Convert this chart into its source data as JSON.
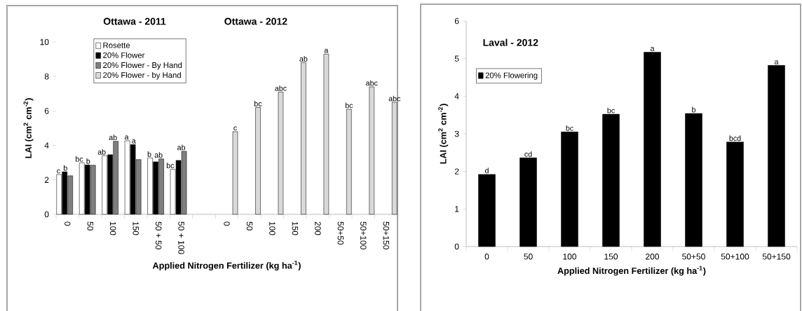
{
  "chart_data": [
    {
      "type": "bar",
      "title": "Ottawa - 2011",
      "annotations": [
        "Ottawa - 2012"
      ],
      "xlabel": "Applied Nitrogen Fertilizer (kg ha$^{-1}$)",
      "ylabel": "LAI (cm$^{2}$ cm$^{-2}$)",
      "categories": [
        "0",
        "50",
        "100",
        "150",
        "50 + 50",
        "50 + 100",
        null,
        "0",
        "50",
        "100",
        "150",
        "200",
        "50+50",
        "50+100",
        "50+150"
      ],
      "ylim": [
        0,
        10
      ],
      "yticks": [
        0,
        2,
        4,
        6,
        8,
        10
      ],
      "legend": "top left",
      "series": [
        {
          "name": "Rosette",
          "color": "#ffffff",
          "values": [
            2.31,
            2.99,
            3.4,
            4.27,
            3.27,
            2.61,
            null,
            null,
            null,
            null,
            null,
            null,
            null,
            null,
            null
          ],
          "value_labels": [
            "c",
            "bc",
            "ab",
            "a",
            "b",
            "bc",
            null,
            null,
            null,
            null,
            null,
            null,
            null,
            null,
            null
          ]
        },
        {
          "name": "20% Flower",
          "color": "#000000",
          "values": [
            2.47,
            2.87,
            3.46,
            4.05,
            3.05,
            3.13,
            null,
            null,
            null,
            null,
            null,
            null,
            null,
            null,
            null
          ],
          "value_labels": [
            "b",
            "b",
            "ab",
            "a",
            "ab",
            "ab",
            null,
            null,
            null,
            null,
            null,
            null,
            null,
            null,
            null
          ]
        },
        {
          "name": "20% Flower - By Hand",
          "color": "#7f7f7f",
          "values": [
            2.24,
            2.85,
            4.24,
            3.18,
            3.22,
            3.66,
            null,
            null,
            null,
            null,
            null,
            null,
            null,
            null,
            null
          ]
        },
        {
          "name": "20% Flower - by Hand",
          "color": "#d9d9d9",
          "values": [
            null,
            null,
            null,
            null,
            null,
            null,
            null,
            4.8,
            6.2,
            7.1,
            8.8,
            9.3,
            6.1,
            7.4,
            6.5
          ],
          "value_labels": [
            null,
            null,
            null,
            null,
            null,
            null,
            null,
            "c",
            "bc",
            "abc",
            "ab",
            "a",
            "bc",
            "abc",
            "abc"
          ]
        }
      ]
    },
    {
      "type": "bar",
      "title": "Laval - 2012",
      "xlabel": "Applied Nitrogen Fertilizer (kg ha$^{-1}$)",
      "ylabel": "LAI (cm$^{2}$ cm$^{-2}$)",
      "categories": [
        "0",
        "50",
        "100",
        "150",
        "200",
        "50+50",
        "50+100",
        "50+150"
      ],
      "ylim": [
        0,
        6
      ],
      "yticks": [
        0,
        1,
        2,
        3,
        4,
        5,
        6
      ],
      "legend": "top left",
      "series": [
        {
          "name": "20% Flowering",
          "color": "#000000",
          "values": [
            1.92,
            2.36,
            3.05,
            3.52,
            5.17,
            3.54,
            2.78,
            4.82
          ],
          "value_labels": [
            "d",
            "cd",
            "bc",
            "bc",
            "a",
            "b",
            "bcd",
            "a"
          ]
        }
      ]
    }
  ]
}
